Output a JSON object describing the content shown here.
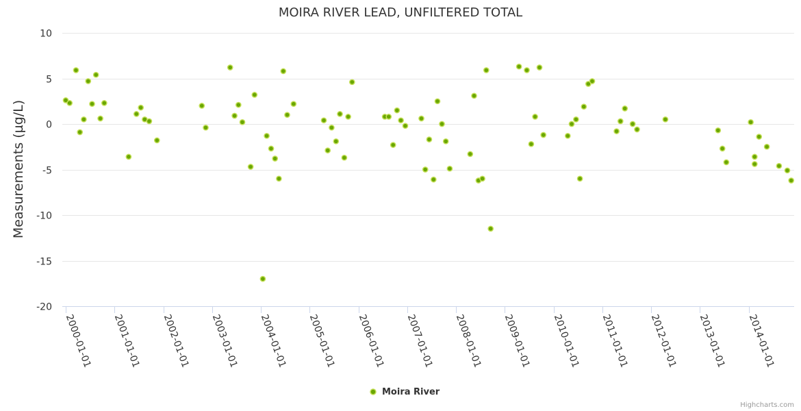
{
  "chart_data": {
    "type": "scatter",
    "title": "MOIRA RIVER LEAD, UNFILTERED TOTAL",
    "ylabel": "Measurements (µg/L)",
    "xlabel": "",
    "ylim": [
      -20,
      10
    ],
    "yticks": [
      10,
      5,
      0,
      -5,
      -10,
      -15,
      -20
    ],
    "xlim": [
      1999.93,
      2014.93
    ],
    "xticks": [
      {
        "value": 2000.0,
        "label": "2000-01-01"
      },
      {
        "value": 2001.0,
        "label": "2001-01-01"
      },
      {
        "value": 2002.0,
        "label": "2002-01-01"
      },
      {
        "value": 2003.0,
        "label": "2003-01-01"
      },
      {
        "value": 2004.0,
        "label": "2004-01-01"
      },
      {
        "value": 2005.0,
        "label": "2005-01-01"
      },
      {
        "value": 2006.0,
        "label": "2006-01-01"
      },
      {
        "value": 2007.0,
        "label": "2007-01-01"
      },
      {
        "value": 2008.0,
        "label": "2008-01-01"
      },
      {
        "value": 2009.0,
        "label": "2009-01-01"
      },
      {
        "value": 2010.0,
        "label": "2010-01-01"
      },
      {
        "value": 2011.0,
        "label": "2011-01-01"
      },
      {
        "value": 2012.0,
        "label": "2012-01-01"
      },
      {
        "value": 2013.0,
        "label": "2013-01-01"
      },
      {
        "value": 2014.0,
        "label": "2014-01-01"
      }
    ],
    "grid": true,
    "legend_position": "bottom-center",
    "series": [
      {
        "name": "Moira River",
        "color": "#6aa703",
        "points": [
          {
            "x": 2000.0,
            "y": 2.6
          },
          {
            "x": 2000.08,
            "y": 2.3
          },
          {
            "x": 2000.21,
            "y": 5.9
          },
          {
            "x": 2000.29,
            "y": -0.9
          },
          {
            "x": 2000.37,
            "y": 0.5
          },
          {
            "x": 2000.46,
            "y": 4.7
          },
          {
            "x": 2000.54,
            "y": 2.2
          },
          {
            "x": 2000.62,
            "y": 5.4
          },
          {
            "x": 2000.71,
            "y": 0.6
          },
          {
            "x": 2000.79,
            "y": 2.3
          },
          {
            "x": 2001.29,
            "y": -3.6
          },
          {
            "x": 2001.45,
            "y": 1.1
          },
          {
            "x": 2001.54,
            "y": 1.8
          },
          {
            "x": 2001.62,
            "y": 0.5
          },
          {
            "x": 2001.71,
            "y": 0.3
          },
          {
            "x": 2001.87,
            "y": -1.8
          },
          {
            "x": 2002.79,
            "y": 2.0
          },
          {
            "x": 2002.87,
            "y": -0.4
          },
          {
            "x": 2003.37,
            "y": 6.2
          },
          {
            "x": 2003.46,
            "y": 0.9
          },
          {
            "x": 2003.54,
            "y": 2.1
          },
          {
            "x": 2003.62,
            "y": 0.2
          },
          {
            "x": 2003.79,
            "y": -4.7
          },
          {
            "x": 2003.87,
            "y": 3.2
          },
          {
            "x": 2004.04,
            "y": -17.0
          },
          {
            "x": 2004.12,
            "y": -1.3
          },
          {
            "x": 2004.21,
            "y": -2.7
          },
          {
            "x": 2004.29,
            "y": -3.8
          },
          {
            "x": 2004.37,
            "y": -6.0
          },
          {
            "x": 2004.46,
            "y": 5.8
          },
          {
            "x": 2004.54,
            "y": 1.0
          },
          {
            "x": 2004.67,
            "y": 2.2
          },
          {
            "x": 2005.29,
            "y": 0.4
          },
          {
            "x": 2005.37,
            "y": -2.9
          },
          {
            "x": 2005.45,
            "y": -0.4
          },
          {
            "x": 2005.54,
            "y": -1.9
          },
          {
            "x": 2005.62,
            "y": 1.1
          },
          {
            "x": 2005.71,
            "y": -3.7
          },
          {
            "x": 2005.79,
            "y": 0.8
          },
          {
            "x": 2005.87,
            "y": 4.6
          },
          {
            "x": 2006.54,
            "y": 0.8
          },
          {
            "x": 2006.62,
            "y": 0.8
          },
          {
            "x": 2006.71,
            "y": -2.3
          },
          {
            "x": 2006.79,
            "y": 1.5
          },
          {
            "x": 2006.87,
            "y": 0.4
          },
          {
            "x": 2006.96,
            "y": -0.2
          },
          {
            "x": 2007.29,
            "y": 0.6
          },
          {
            "x": 2007.37,
            "y": -5.0
          },
          {
            "x": 2007.45,
            "y": -1.7
          },
          {
            "x": 2007.54,
            "y": -6.1
          },
          {
            "x": 2007.62,
            "y": 2.5
          },
          {
            "x": 2007.71,
            "y": 0.0
          },
          {
            "x": 2007.79,
            "y": -1.9
          },
          {
            "x": 2007.87,
            "y": -4.9
          },
          {
            "x": 2008.29,
            "y": -3.3
          },
          {
            "x": 2008.37,
            "y": 3.1
          },
          {
            "x": 2008.46,
            "y": -6.2
          },
          {
            "x": 2008.54,
            "y": -6.0
          },
          {
            "x": 2008.62,
            "y": 5.9
          },
          {
            "x": 2008.71,
            "y": -11.5
          },
          {
            "x": 2009.29,
            "y": 6.3
          },
          {
            "x": 2009.45,
            "y": 5.9
          },
          {
            "x": 2009.54,
            "y": -2.2
          },
          {
            "x": 2009.62,
            "y": 0.8
          },
          {
            "x": 2009.71,
            "y": 6.2
          },
          {
            "x": 2009.79,
            "y": -1.2
          },
          {
            "x": 2010.29,
            "y": -1.3
          },
          {
            "x": 2010.37,
            "y": 0.0
          },
          {
            "x": 2010.46,
            "y": 0.5
          },
          {
            "x": 2010.54,
            "y": -6.0
          },
          {
            "x": 2010.62,
            "y": 1.9
          },
          {
            "x": 2010.71,
            "y": 4.4
          },
          {
            "x": 2010.79,
            "y": 4.7
          },
          {
            "x": 2011.29,
            "y": -0.8
          },
          {
            "x": 2011.37,
            "y": 0.3
          },
          {
            "x": 2011.46,
            "y": 1.7
          },
          {
            "x": 2011.62,
            "y": 0.0
          },
          {
            "x": 2011.71,
            "y": -0.6
          },
          {
            "x": 2012.29,
            "y": 0.5
          },
          {
            "x": 2013.37,
            "y": -0.7
          },
          {
            "x": 2013.46,
            "y": -2.7
          },
          {
            "x": 2013.54,
            "y": -4.2
          },
          {
            "x": 2014.04,
            "y": 0.2
          },
          {
            "x": 2014.12,
            "y": -3.6
          },
          {
            "x": 2014.12,
            "y": -4.4
          },
          {
            "x": 2014.21,
            "y": -1.4
          },
          {
            "x": 2014.37,
            "y": -2.5
          },
          {
            "x": 2014.62,
            "y": -4.6
          },
          {
            "x": 2014.79,
            "y": -5.1
          },
          {
            "x": 2014.87,
            "y": -6.2
          }
        ]
      }
    ]
  },
  "credits": "Highcharts.com"
}
